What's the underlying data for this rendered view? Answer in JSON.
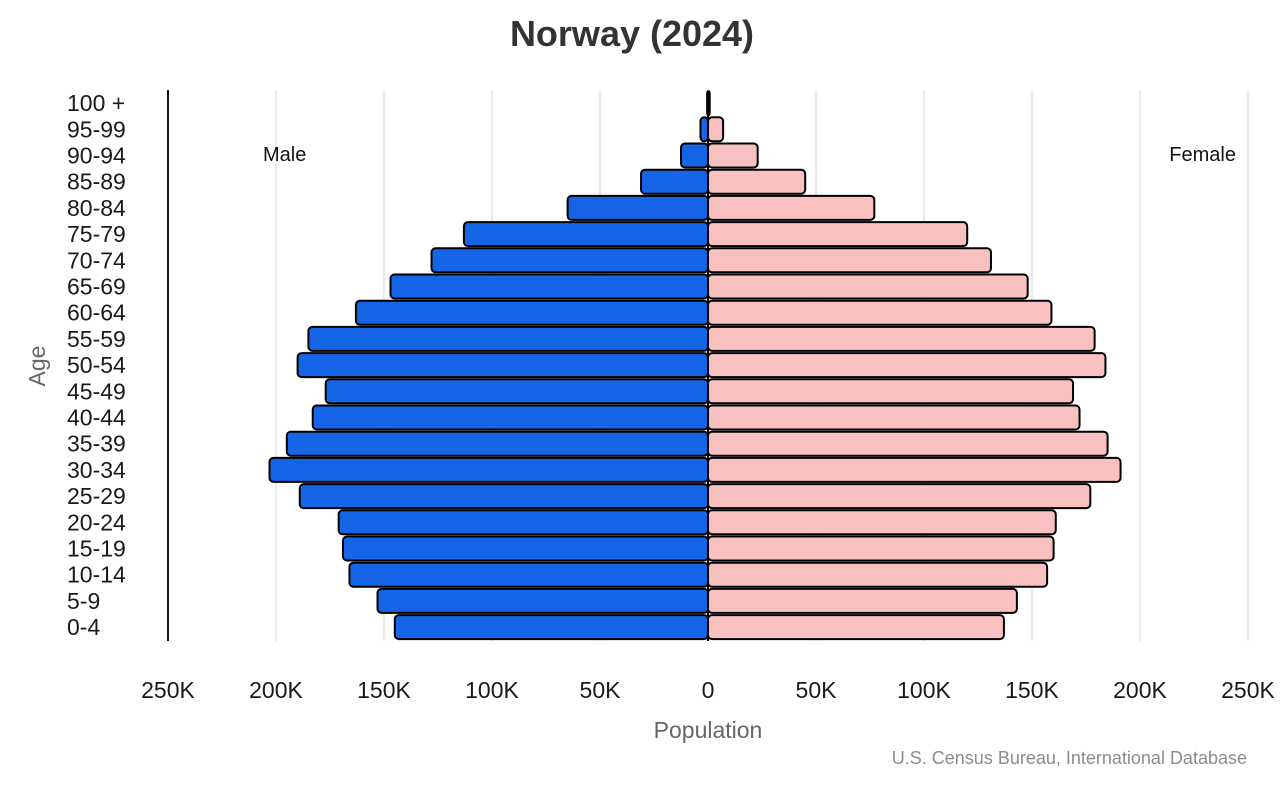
{
  "chart_data": {
    "type": "bar",
    "orientation": "horizontal",
    "layout": "population-pyramid",
    "title": "Norway (2024)",
    "xlabel": "Population",
    "ylabel": "Age",
    "source": "U.S. Census Bureau, International Database",
    "side_labels": {
      "left": "Male",
      "right": "Female"
    },
    "categories": [
      "100 +",
      "95-99",
      "90-94",
      "85-89",
      "80-84",
      "75-79",
      "70-74",
      "65-69",
      "60-64",
      "55-59",
      "50-54",
      "45-49",
      "40-44",
      "35-39",
      "30-34",
      "25-29",
      "20-24",
      "15-19",
      "10-14",
      "5-9",
      "0-4"
    ],
    "series": [
      {
        "name": "Male",
        "color": "#1565e6",
        "values": [
          400,
          3500,
          12500,
          31000,
          65000,
          113000,
          128000,
          147000,
          163000,
          185000,
          190000,
          177000,
          183000,
          195000,
          203000,
          189000,
          171000,
          169000,
          166000,
          153000,
          145000
        ]
      },
      {
        "name": "Female",
        "color": "#f9c0c0",
        "values": [
          800,
          7000,
          23000,
          45000,
          77000,
          120000,
          131000,
          148000,
          159000,
          179000,
          184000,
          169000,
          172000,
          185000,
          191000,
          177000,
          161000,
          160000,
          157000,
          143000,
          137000
        ]
      }
    ],
    "x_ticks": [
      "250K",
      "200K",
      "150K",
      "100K",
      "50K",
      "0",
      "50K",
      "100K",
      "150K",
      "200K",
      "250K"
    ],
    "xlim": [
      -250000,
      250000
    ],
    "grid": true,
    "bar_outline": "#000000"
  }
}
